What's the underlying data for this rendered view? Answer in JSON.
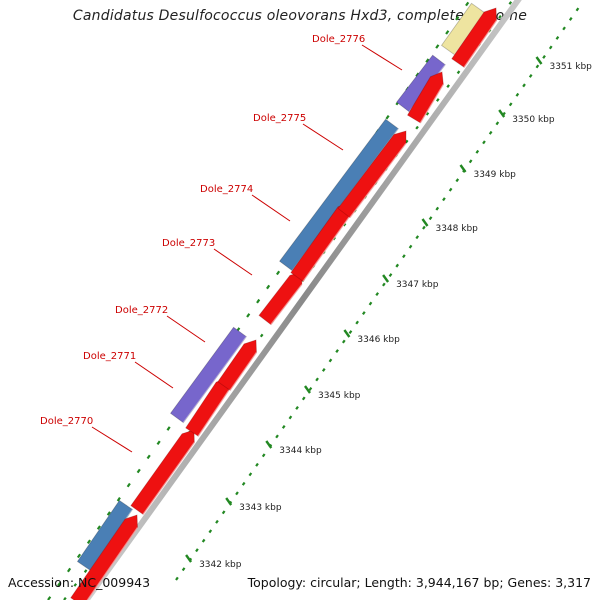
{
  "title": "Candidatus Desulfococcus oleovorans Hxd3, complete genome",
  "footer": {
    "accession": "Accession: NC_009943",
    "summary": "Topology: circular; Length: 3,944,167 bp; Genes: 3,317"
  },
  "colors": {
    "cds": "#ee1111",
    "blue_feature": "#4a7fb5",
    "purple_feature": "#7766cc",
    "yellow_feature": "#eee4a0",
    "tick": "#228822",
    "gene_label": "#cc0000",
    "backbone": "#9a9a9a"
  },
  "gene_labels": [
    "Dole_2776",
    "Dole_2775",
    "Dole_2774",
    "Dole_2773",
    "Dole_2772",
    "Dole_2771",
    "Dole_2770"
  ],
  "scale_labels": [
    "3351 kbp",
    "3350 kbp",
    "3349 kbp",
    "3348 kbp",
    "3347 kbp",
    "3346 kbp",
    "3345 kbp",
    "3344 kbp",
    "3343 kbp",
    "3342 kbp"
  ]
}
